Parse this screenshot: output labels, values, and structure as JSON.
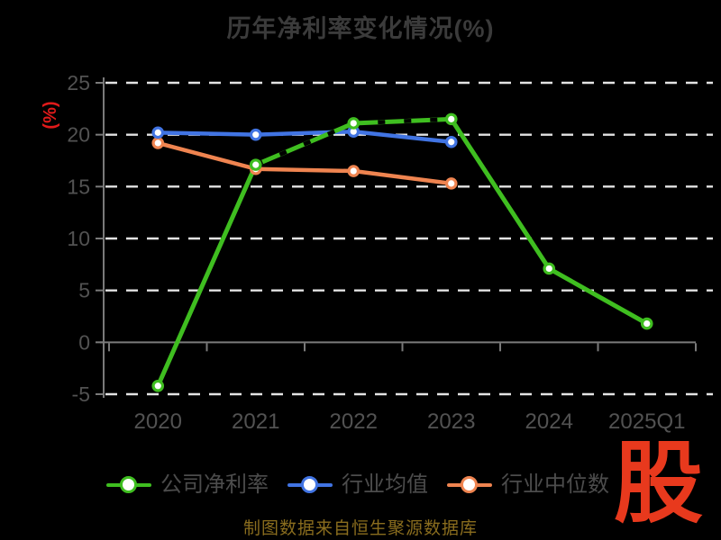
{
  "title": {
    "text": "历年净利率变化情况(%)",
    "color": "#3b3b3b"
  },
  "chart_data": {
    "type": "line",
    "title": "历年净利率变化情况(%)",
    "categories": [
      "2020",
      "2021",
      "2022",
      "2023",
      "2024",
      "2025Q1"
    ],
    "series": [
      {
        "name": "公司净利率",
        "color": "#3fbe20",
        "line_width": 5,
        "values": [
          -4.2,
          17.1,
          21.1,
          21.5,
          7.1,
          1.8
        ],
        "black_dash_overlay_from": 1,
        "black_dash_overlay_to": 3
      },
      {
        "name": "行业均值",
        "color": "#4174e3",
        "line_width": 4.5,
        "values": [
          20.2,
          20.0,
          20.3,
          19.3,
          null,
          null
        ]
      },
      {
        "name": "行业中位数",
        "color": "#ef8450",
        "line_width": 4.5,
        "values": [
          19.2,
          16.7,
          16.5,
          15.3,
          null,
          null
        ]
      }
    ],
    "ylabel": "(%)",
    "ylabel_color": "#e01a1a",
    "ylim": [
      -5,
      25
    ],
    "yticks": [
      25,
      20,
      15,
      10,
      5,
      0,
      -5
    ],
    "grid": "horizontal-dashed-white",
    "marker": "circle-white-fill-colored-ring",
    "legend_position": "bottom",
    "x_axis_on_zero": true
  },
  "axis": {
    "tick_label_color": "#525252",
    "line_color": "#7a7a7a",
    "grid_color": "#e3e3e3"
  },
  "legend": {
    "text_color": "#4c4c4c",
    "items": [
      {
        "label": "公司净利率",
        "color": "#3fbe20"
      },
      {
        "label": "行业均值",
        "color": "#4174e3"
      },
      {
        "label": "行业中位数",
        "color": "#ef8450"
      }
    ]
  },
  "footer": {
    "caption": "制图数据来自恒生聚源数据库",
    "caption_color": "#8a6d1e",
    "logo_text": "股",
    "logo_color": "#e8391d"
  }
}
